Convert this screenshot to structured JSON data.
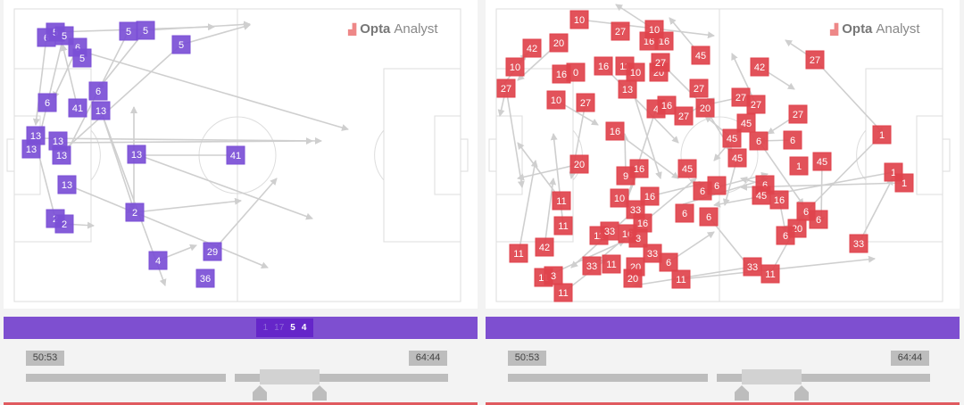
{
  "brand": {
    "logo_bold": "Opta",
    "logo_light": "Analyst"
  },
  "colors": {
    "home": "#7b4fd6",
    "away": "#e0434c",
    "bar": "#7e4fd0",
    "bar_box": "#6526c9"
  },
  "left": {
    "markers": [
      "6",
      "5",
      "5",
      "6",
      "5",
      "5",
      "5",
      "5",
      "6",
      "41",
      "6",
      "13",
      "13",
      "13",
      "13",
      "13",
      "13",
      "13",
      "41",
      "2",
      "2",
      "2",
      "4",
      "29",
      "36"
    ],
    "bar_labels": [
      "1",
      "17",
      "5",
      "4"
    ],
    "start_time": "50:53",
    "end_time": "64:44"
  },
  "right": {
    "markers": [
      "10",
      "20",
      "27",
      "42",
      "10",
      "16",
      "0",
      "27",
      "10",
      "27",
      "16",
      "11",
      "10",
      "20",
      "27",
      "16",
      "16",
      "10",
      "45",
      "4",
      "16",
      "27",
      "20",
      "13",
      "16",
      "27",
      "20",
      "9",
      "16",
      "10",
      "16",
      "33",
      "16",
      "6",
      "45",
      "6",
      "6",
      "6",
      "11",
      "11",
      "11",
      "33",
      "16",
      "3",
      "42",
      "11",
      "33",
      "6",
      "33",
      "11",
      "20",
      "20",
      "11",
      "3",
      "11",
      "11",
      "42",
      "27",
      "27",
      "27",
      "45",
      "45",
      "6",
      "27",
      "6",
      "45",
      "1",
      "45",
      "6",
      "45",
      "16",
      "6",
      "6",
      "20",
      "6",
      "33",
      "11",
      "33",
      "1",
      "1",
      "1"
    ],
    "start_time": "50:53",
    "end_time": "64:44"
  }
}
